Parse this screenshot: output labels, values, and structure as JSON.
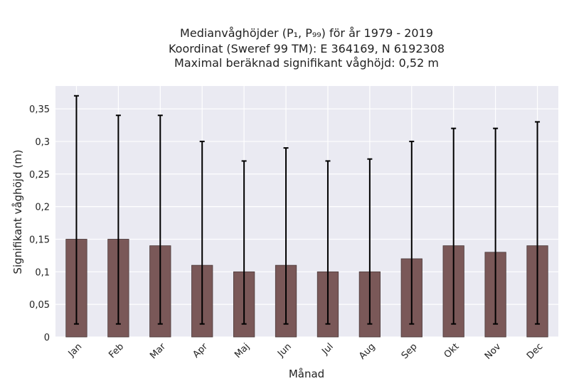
{
  "chart_data": {
    "type": "bar",
    "title_lines": [
      "Medianvåghöjder (P₁, P₉₉) för år 1979 - 2019",
      "Koordinat (Sweref 99 TM): E 364169, N 6192308",
      "Maximal beräknad signifikant våghöjd: 0,52 m"
    ],
    "xlabel": "Månad",
    "ylabel": "Signifikant våghöjd (m)",
    "categories": [
      "Jan",
      "Feb",
      "Mar",
      "Apr",
      "Maj",
      "Jun",
      "Jul",
      "Aug",
      "Sep",
      "Okt",
      "Nov",
      "Dec"
    ],
    "series": [
      {
        "values": [
          0.15,
          0.15,
          0.14,
          0.11,
          0.1,
          0.11,
          0.1,
          0.1,
          0.12,
          0.14,
          0.13,
          0.14
        ],
        "error_low": [
          0.02,
          0.02,
          0.02,
          0.02,
          0.02,
          0.02,
          0.02,
          0.02,
          0.02,
          0.02,
          0.02,
          0.02
        ],
        "error_high": [
          0.37,
          0.34,
          0.34,
          0.3,
          0.27,
          0.29,
          0.27,
          0.273,
          0.3,
          0.32,
          0.32,
          0.33
        ]
      }
    ],
    "ylim": [
      0,
      0.385
    ],
    "yticks": [
      0,
      0.05,
      0.1,
      0.15,
      0.2,
      0.25,
      0.3,
      0.35
    ],
    "ytick_labels": [
      "0",
      "0,05",
      "0,1",
      "0,15",
      "0,2",
      "0,25",
      "0,3",
      "0,35"
    ],
    "grid": true,
    "colors": {
      "bar": "#7a5858",
      "bar_edge": "#4a3a3a",
      "error": "#000000",
      "plot_background": "#eaeaf2",
      "grid": "#ffffff"
    }
  }
}
